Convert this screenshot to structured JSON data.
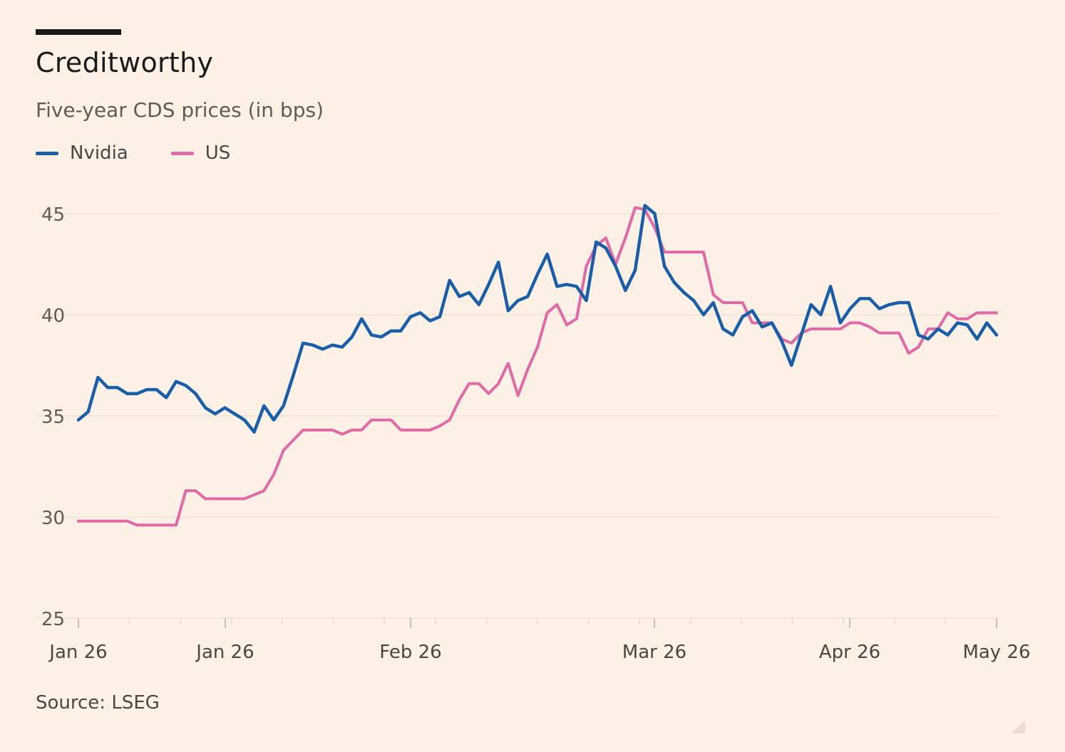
{
  "title": "Creditworthy",
  "subtitle": "Five-year CDS prices (in bps)",
  "source": "Source: LSEG",
  "legend": [
    {
      "name": "Nvidia",
      "color": "#1a5ea8"
    },
    {
      "name": "US",
      "color": "#e06aa5"
    }
  ],
  "chart_data": {
    "type": "line",
    "y_ticks": [
      25,
      30,
      35,
      40,
      45
    ],
    "ylim": [
      25,
      45.5
    ],
    "x_ticks": [
      "Jan 26",
      "Jan 26",
      "Feb 26",
      "Mar 26",
      "Apr 26",
      "May 26"
    ],
    "grid": true,
    "legend_position": "top-left",
    "series": [
      {
        "name": "Nvidia",
        "color": "#1a5ea8",
        "values": [
          34.8,
          35.2,
          36.9,
          36.4,
          36.4,
          36.1,
          36.1,
          36.3,
          36.3,
          35.9,
          36.7,
          36.5,
          36.1,
          35.4,
          35.1,
          35.4,
          35.1,
          34.8,
          34.2,
          35.5,
          34.8,
          35.5,
          37.0,
          38.6,
          38.5,
          38.3,
          38.5,
          38.4,
          38.9,
          39.8,
          39.0,
          38.9,
          39.2,
          39.2,
          39.9,
          40.1,
          39.7,
          39.9,
          41.7,
          40.9,
          41.1,
          40.5,
          41.5,
          42.6,
          40.2,
          40.7,
          40.9,
          42.0,
          43.0,
          41.4,
          41.5,
          41.4,
          40.7,
          43.6,
          43.3,
          42.4,
          41.2,
          42.2,
          45.4,
          45.0,
          42.4,
          41.6,
          41.1,
          40.7,
          40.0,
          40.6,
          39.3,
          39.0,
          39.9,
          40.2,
          39.4,
          39.6,
          38.7,
          37.5,
          39.0,
          40.5,
          40.0,
          41.4,
          39.6,
          40.3,
          40.8,
          40.8,
          40.3,
          40.5,
          40.6,
          40.6,
          39.0,
          38.8,
          39.3,
          39.0,
          39.6,
          39.5,
          38.8,
          39.6,
          39.0
        ]
      },
      {
        "name": "US",
        "color": "#e06aa5",
        "values": [
          29.8,
          29.8,
          29.8,
          29.8,
          29.8,
          29.8,
          29.6,
          29.6,
          29.6,
          29.6,
          29.6,
          31.3,
          31.3,
          30.9,
          30.9,
          30.9,
          30.9,
          30.9,
          31.1,
          31.3,
          32.1,
          33.3,
          33.8,
          34.3,
          34.3,
          34.3,
          34.3,
          34.1,
          34.3,
          34.3,
          34.8,
          34.8,
          34.8,
          34.3,
          34.3,
          34.3,
          34.3,
          34.5,
          34.8,
          35.8,
          36.6,
          36.6,
          36.1,
          36.6,
          37.6,
          36.0,
          37.3,
          38.4,
          40.1,
          40.5,
          39.5,
          39.8,
          42.4,
          43.4,
          43.8,
          42.5,
          43.8,
          45.3,
          45.2,
          44.3,
          43.1,
          43.1,
          43.1,
          43.1,
          43.1,
          41.0,
          40.6,
          40.6,
          40.6,
          39.6,
          39.6,
          39.6,
          38.8,
          38.6,
          39.1,
          39.3,
          39.3,
          39.3,
          39.3,
          39.6,
          39.6,
          39.4,
          39.1,
          39.1,
          39.1,
          38.1,
          38.4,
          39.3,
          39.3,
          40.1,
          39.8,
          39.8,
          40.1,
          40.1,
          40.1
        ]
      }
    ]
  }
}
